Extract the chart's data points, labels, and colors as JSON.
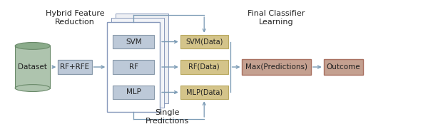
{
  "fig_width": 6.0,
  "fig_height": 1.88,
  "dpi": 100,
  "bg_color": "#ffffff",
  "dataset_label": "Dataset",
  "rfrfe_label": "RF+RFE",
  "svm_label": "SVM",
  "rf_label": "RF",
  "mlp_label": "MLP",
  "svm_data_label": "SVM(Data)",
  "rf_data_label": "RF(Data)",
  "mlp_data_label": "MLP(Data)",
  "max_pred_label": "Max(Predictions)",
  "outcome_label": "Outcome",
  "hybrid_title": "Hybrid Feature\nReduction",
  "final_title": "Final Classifier\nLearning",
  "single_pred_title": "Single\nPredictions",
  "cylinder_color_body": "#aec4ae",
  "cylinder_color_top": "#8aab8a",
  "cylinder_edge": "#6a8a6a",
  "box_blue_color": "#bdc9d8",
  "box_blue_edge": "#8899aa",
  "box_tan_color": "#d4c48a",
  "box_tan_edge": "#b8a860",
  "box_pink_color": "#c4a090",
  "box_pink_edge": "#a87060",
  "arrow_color": "#7a9ab4",
  "border_color": "#8899bb",
  "font_size": 7.5,
  "title_font_size": 8.0
}
